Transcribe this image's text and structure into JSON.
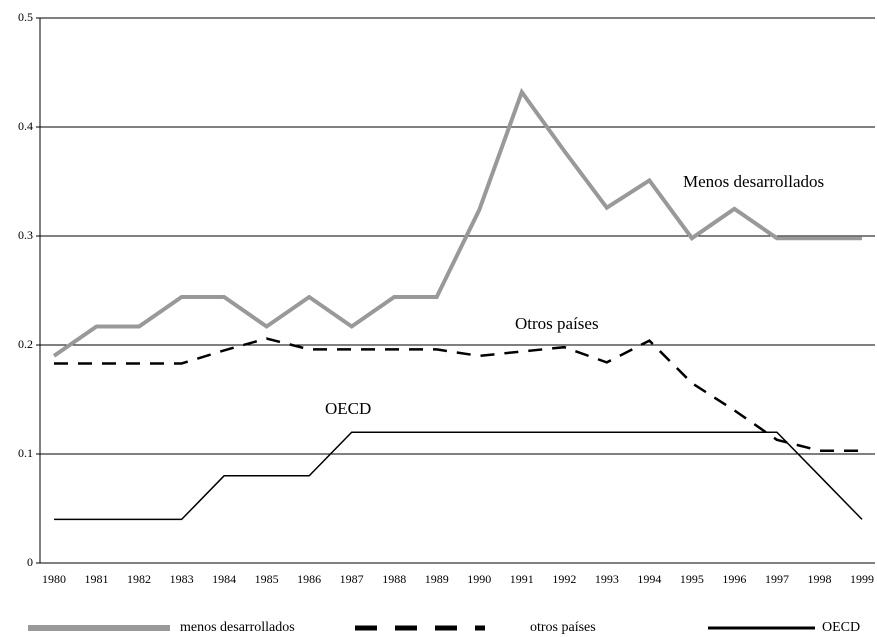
{
  "chart_data": {
    "type": "line",
    "categories": [
      "1980",
      "1981",
      "1982",
      "1983",
      "1984",
      "1985",
      "1986",
      "1987",
      "1988",
      "1989",
      "1990",
      "1991",
      "1992",
      "1993",
      "1994",
      "1995",
      "1996",
      "1997",
      "1998",
      "1999"
    ],
    "series": [
      {
        "name": "menos desarrollados",
        "color": "#999999",
        "style": "thick",
        "values": [
          0.19,
          0.217,
          0.217,
          0.244,
          0.244,
          0.217,
          0.244,
          0.217,
          0.244,
          0.244,
          0.324,
          0.432,
          0.378,
          0.326,
          0.351,
          0.298,
          0.325,
          0.298,
          0.298,
          0.298
        ]
      },
      {
        "name": "otros países",
        "color": "#000000",
        "style": "dashed",
        "values": [
          0.183,
          0.183,
          0.183,
          0.183,
          0.195,
          0.206,
          0.196,
          0.196,
          0.196,
          0.196,
          0.19,
          0.194,
          0.198,
          0.184,
          0.204,
          0.165,
          0.14,
          0.113,
          0.103,
          0.103
        ]
      },
      {
        "name": "OECD",
        "color": "#000000",
        "style": "thin",
        "values": [
          0.04,
          0.04,
          0.04,
          0.04,
          0.08,
          0.08,
          0.08,
          0.12,
          0.12,
          0.12,
          0.12,
          0.12,
          0.12,
          0.12,
          0.12,
          0.12,
          0.12,
          0.12,
          0.08,
          0.04
        ]
      }
    ],
    "annotations": [
      "Menos desarrollados",
      "Otros países",
      "OECD"
    ],
    "ylim": [
      0,
      0.5
    ],
    "yticks": [
      0,
      0.1,
      0.2,
      0.3,
      0.4,
      0.5
    ],
    "grid": true
  }
}
